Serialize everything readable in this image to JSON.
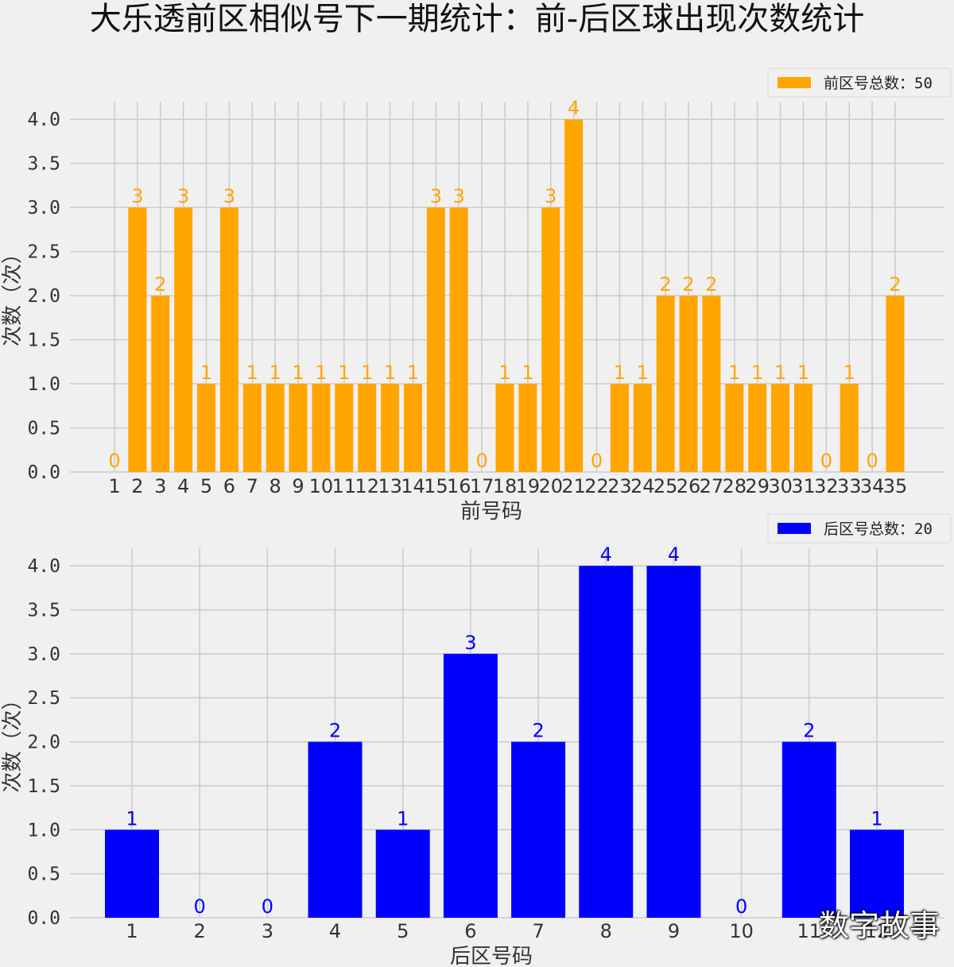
{
  "title": "大乐透前区相似号下一期统计：前-后区球出现次数统计",
  "watermark": "数字故事",
  "chart_data": [
    {
      "type": "bar",
      "categories": [
        "1",
        "2",
        "3",
        "4",
        "5",
        "6",
        "7",
        "8",
        "9",
        "10",
        "11",
        "12",
        "13",
        "14",
        "15",
        "16",
        "17",
        "18",
        "19",
        "20",
        "21",
        "22",
        "23",
        "24",
        "25",
        "26",
        "27",
        "28",
        "29",
        "30",
        "31",
        "32",
        "33",
        "34",
        "35"
      ],
      "values": [
        0,
        3,
        2,
        3,
        1,
        3,
        1,
        1,
        1,
        1,
        1,
        1,
        1,
        1,
        3,
        3,
        0,
        1,
        1,
        3,
        4,
        0,
        1,
        1,
        2,
        2,
        2,
        1,
        1,
        1,
        1,
        0,
        1,
        0,
        2
      ],
      "xlabel": "前号码",
      "ylabel": "次数（次）",
      "ylim": [
        0,
        4.2
      ],
      "yticks": [
        "0.0",
        "0.5",
        "1.0",
        "1.5",
        "2.0",
        "2.5",
        "3.0",
        "3.5",
        "4.0"
      ],
      "legend": "前区号总数：50",
      "legend_position": "top-right",
      "color": "#FFA500",
      "grid": true
    },
    {
      "type": "bar",
      "categories": [
        "1",
        "2",
        "3",
        "4",
        "5",
        "6",
        "7",
        "8",
        "9",
        "10",
        "11",
        "12"
      ],
      "values": [
        1,
        0,
        0,
        2,
        1,
        3,
        2,
        4,
        4,
        0,
        2,
        1
      ],
      "xlabel": "后区号码",
      "ylabel": "次数（次）",
      "ylim": [
        0,
        4.2
      ],
      "yticks": [
        "0.0",
        "0.5",
        "1.0",
        "1.5",
        "2.0",
        "2.5",
        "3.0",
        "3.5",
        "4.0"
      ],
      "legend": "后区号总数：20",
      "legend_position": "top-right",
      "color": "#0000FF",
      "grid": true
    }
  ]
}
